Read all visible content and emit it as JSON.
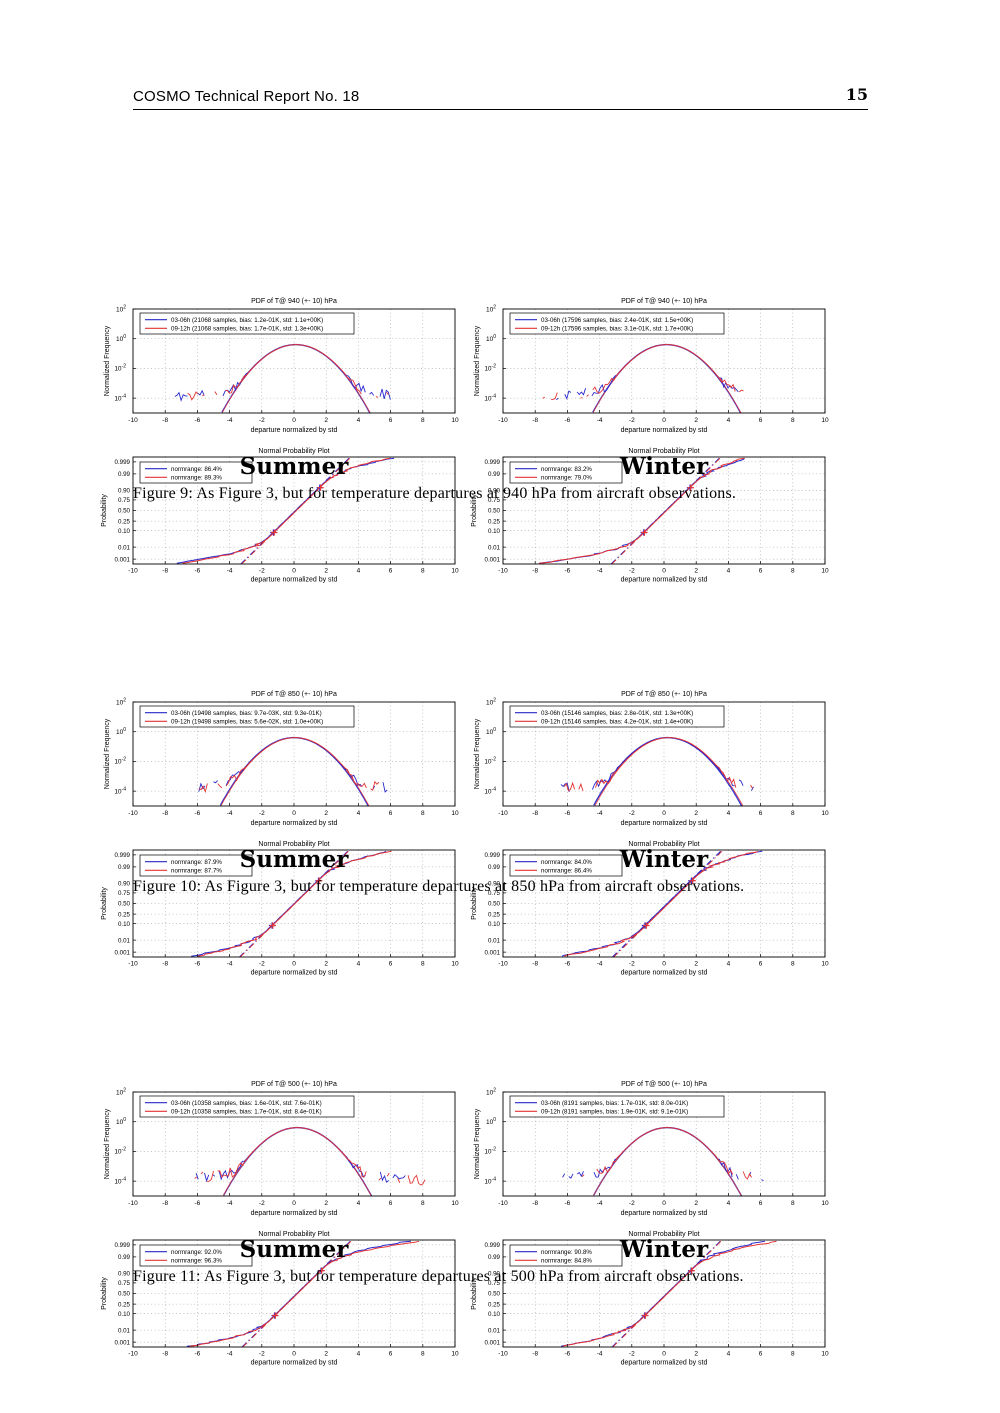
{
  "header": {
    "title": "COSMO Technical Report No. 18",
    "page_number": "15"
  },
  "colors": {
    "blue": "#2828cc",
    "red": "#e63333",
    "grid": "#999999",
    "box": "#000000"
  },
  "chart_data": {
    "type": "line",
    "pdf_axes": {
      "xlabel": "departure normalized by std",
      "ylabel": "Normalized Frequency",
      "xlim": [
        -10,
        10
      ],
      "x_ticks": [
        -10,
        -8,
        -6,
        -4,
        -2,
        0,
        2,
        4,
        6,
        8,
        10
      ],
      "y_tick_exponents": [
        2,
        0,
        -2,
        -4
      ],
      "ylim_log10": [
        -5,
        2
      ],
      "grid": "on",
      "legend_position": "upper-left"
    },
    "npp_axes": {
      "title": "Normal Probability Plot",
      "xlabel": "departure normalized by std",
      "ylabel": "Probability",
      "xlim": [
        -10,
        10
      ],
      "x_ticks": [
        -10,
        -8,
        -6,
        -4,
        -2,
        0,
        2,
        4,
        6,
        8,
        10
      ],
      "p_tick_labels": [
        "0.001",
        "0.01",
        "0.10",
        "0.25",
        "0.50",
        "0.75",
        "0.90",
        "0.99",
        "0.999"
      ],
      "grid": "on",
      "legend_position": "upper-left"
    },
    "figures": [
      {
        "caption": "Figure 9:  As Figure 3, but for temperature departures at 940 hPa from aircraft observations.",
        "panels": [
          {
            "season": "Summer",
            "pdf": {
              "title": "PDF of T@ 940 (+- 10) hPa",
              "series": [
                {
                  "label": "03-06h (21068 samples, bias: 1.2e-01K, std: 1.1e+00K)",
                  "color": "blue",
                  "shift": 0.11,
                  "xlo": -7.4,
                  "xhi": 6.4,
                  "seed": 11
                },
                {
                  "label": "09-12h (21068 samples, bias: 1.7e-01K, std: 1.3e+00K)",
                  "color": "red",
                  "shift": 0.13,
                  "xlo": -7.0,
                  "xhi": 6.1,
                  "seed": 12
                }
              ]
            },
            "npp": {
              "series": [
                {
                  "label": "normrange: 86.4%",
                  "color": "blue",
                  "shift": 0.1,
                  "xlo": -7.3,
                  "xhi": 6.3,
                  "seed": 13
                },
                {
                  "label": "normrange: 89.3%",
                  "color": "red",
                  "shift": 0.15,
                  "xlo": -6.9,
                  "xhi": 6.0,
                  "seed": 14
                }
              ]
            }
          },
          {
            "season": "Winter",
            "pdf": {
              "title": "PDF of T@ 940 (+- 10) hPa",
              "series": [
                {
                  "label": "03-06h (17596 samples, bias: 2.4e-01K, std: 1.5e+00K)",
                  "color": "blue",
                  "shift": 0.16,
                  "xlo": -7.6,
                  "xhi": 5.3,
                  "seed": 21
                },
                {
                  "label": "09-12h (17596 samples, bias: 3.1e-01K, std: 1.7e+00K)",
                  "color": "red",
                  "shift": 0.18,
                  "xlo": -7.8,
                  "xhi": 5.0,
                  "seed": 22
                }
              ]
            },
            "npp": {
              "series": [
                {
                  "label": "normrange: 83.2%",
                  "color": "blue",
                  "shift": 0.12,
                  "xlo": -7.6,
                  "xhi": 5.2,
                  "seed": 23
                },
                {
                  "label": "normrange: 79.0%",
                  "color": "red",
                  "shift": 0.16,
                  "xlo": -7.7,
                  "xhi": 5.0,
                  "seed": 24
                }
              ]
            }
          }
        ]
      },
      {
        "caption": "Figure 10:  As Figure 3, but for temperature departures at 850 hPa from aircraft observations.",
        "panels": [
          {
            "season": "Summer",
            "pdf": {
              "title": "PDF of T@ 850 (+- 10) hPa",
              "series": [
                {
                  "label": "03-06h (19498 samples, bias: 9.7e-03K, std: 9.3e-01K)",
                  "color": "blue",
                  "shift": 0.01,
                  "xlo": -6.3,
                  "xhi": 5.9,
                  "seed": 31
                },
                {
                  "label": "09-12h (19498 samples, bias: 5.6e-02K, std: 1.0e+00K)",
                  "color": "red",
                  "shift": 0.06,
                  "xlo": -5.9,
                  "xhi": 6.1,
                  "seed": 32
                }
              ]
            },
            "npp": {
              "series": [
                {
                  "label": "normrange: 87.9%",
                  "color": "blue",
                  "shift": 0.02,
                  "xlo": -6.4,
                  "xhi": 6.0,
                  "seed": 33
                },
                {
                  "label": "normrange: 87.7%",
                  "color": "red",
                  "shift": 0.06,
                  "xlo": -6.0,
                  "xhi": 6.1,
                  "seed": 34
                }
              ]
            }
          },
          {
            "season": "Winter",
            "pdf": {
              "title": "PDF of T@ 850 (+- 10) hPa",
              "series": [
                {
                  "label": "03-06h (15146 samples, bias: 2.8e-01K, std: 1.3e+00K)",
                  "color": "blue",
                  "shift": 0.22,
                  "xlo": -6.4,
                  "xhi": 5.6,
                  "seed": 41
                },
                {
                  "label": "09-12h (15146 samples, bias: 4.2e-01K, std: 1.4e+00K)",
                  "color": "red",
                  "shift": 0.3,
                  "xlo": -6.2,
                  "xhi": 5.8,
                  "seed": 42
                }
              ]
            },
            "npp": {
              "series": [
                {
                  "label": "normrange: 84.0%",
                  "color": "blue",
                  "shift": 0.2,
                  "xlo": -6.5,
                  "xhi": 6.1,
                  "seed": 43
                },
                {
                  "label": "normrange: 86.4%",
                  "color": "red",
                  "shift": 0.28,
                  "xlo": -6.3,
                  "xhi": 6.0,
                  "seed": 44
                }
              ]
            }
          }
        ]
      },
      {
        "caption": "Figure 11:  As Figure 3, but for temperature departures at 500 hPa from aircraft observations.",
        "panels": [
          {
            "season": "Summer",
            "pdf": {
              "title": "PDF of T@ 500 (+- 10) hPa",
              "series": [
                {
                  "label": "03-06h (10358 samples, bias: 1.6e-01K, std: 7.6e-01K)",
                  "color": "blue",
                  "shift": 0.21,
                  "xlo": -6.6,
                  "xhi": 7.8,
                  "seed": 51
                },
                {
                  "label": "09-12h (10358 samples, bias: 1.7e-01K, std: 8.4e-01K)",
                  "color": "red",
                  "shift": 0.2,
                  "xlo": -6.3,
                  "xhi": 8.2,
                  "seed": 52
                }
              ]
            },
            "npp": {
              "series": [
                {
                  "label": "normrange: 92.0%",
                  "color": "blue",
                  "shift": 0.18,
                  "xlo": -6.5,
                  "xhi": 7.3,
                  "seed": 53
                },
                {
                  "label": "normrange: 96.3%",
                  "color": "red",
                  "shift": 0.22,
                  "xlo": -6.4,
                  "xhi": 8.1,
                  "seed": 54
                }
              ]
            }
          },
          {
            "season": "Winter",
            "pdf": {
              "title": "PDF of T@ 500 (+- 10) hPa",
              "series": [
                {
                  "label": "03-06h (8191 samples, bias: 1.7e-01K, std: 8.0e-01K)",
                  "color": "blue",
                  "shift": 0.21,
                  "xlo": -6.3,
                  "xhi": 6.3,
                  "seed": 61
                },
                {
                  "label": "09-12h (8191 samples, bias: 1.9e-01K, std: 9.1e-01K)",
                  "color": "red",
                  "shift": 0.21,
                  "xlo": -6.0,
                  "xhi": 6.3,
                  "seed": 62
                }
              ]
            },
            "npp": {
              "series": [
                {
                  "label": "normrange: 90.8%",
                  "color": "blue",
                  "shift": 0.18,
                  "xlo": -6.3,
                  "xhi": 6.3,
                  "seed": 63
                },
                {
                  "label": "normrange: 84.8%",
                  "color": "red",
                  "shift": 0.22,
                  "xlo": -6.4,
                  "xhi": 7.3,
                  "seed": 64
                }
              ]
            }
          }
        ]
      }
    ]
  }
}
